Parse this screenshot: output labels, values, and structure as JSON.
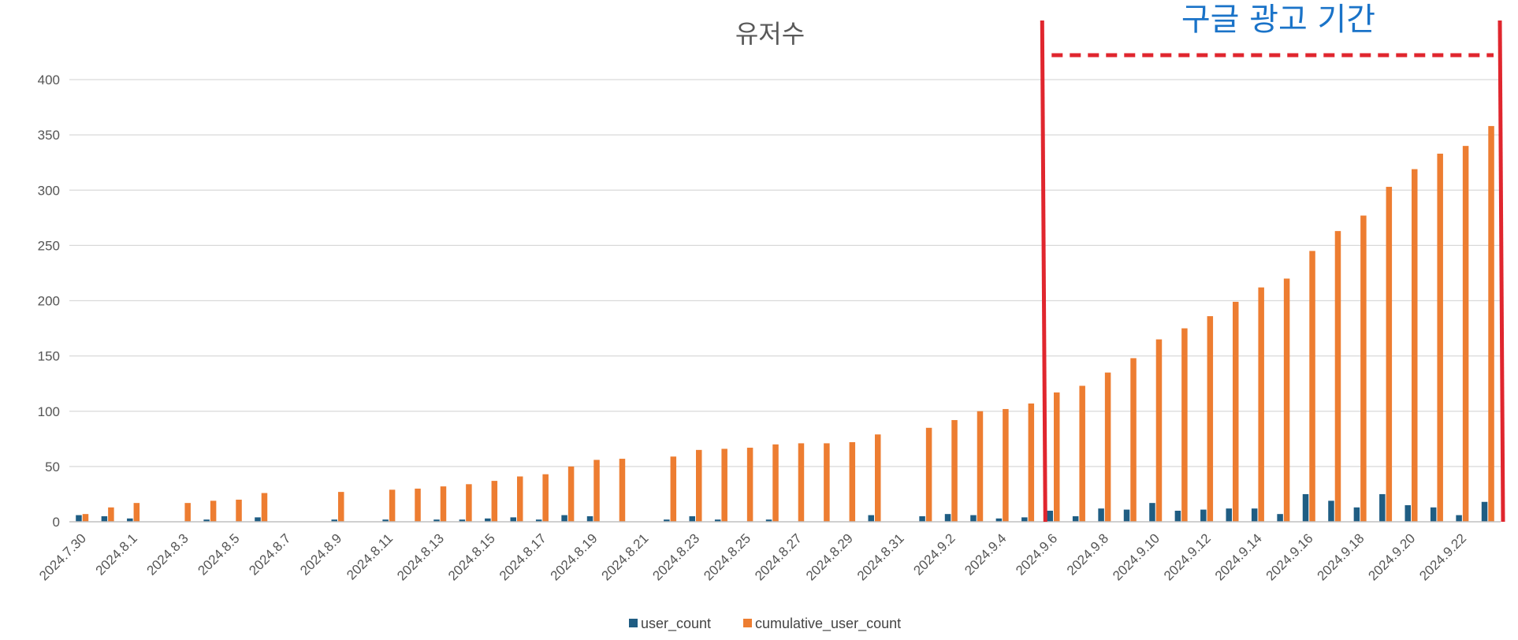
{
  "colors": {
    "user_count": "#1f5d83",
    "cumulative_user_count": "#ed7d31",
    "grid": "#d9d9d9",
    "annotation_line": "#e0262e",
    "annotation_text": "#1a73c8"
  },
  "chart_data": {
    "type": "bar",
    "title": "유저수",
    "xlabel": "",
    "ylabel": "",
    "ylim": [
      0,
      400
    ],
    "yticks": [
      0,
      50,
      100,
      150,
      200,
      250,
      300,
      350,
      400
    ],
    "grid": true,
    "legend_position": "bottom",
    "categories": [
      "2024.7.30",
      "2024.7.31",
      "2024.8.1",
      "2024.8.2",
      "2024.8.3",
      "2024.8.4",
      "2024.8.5",
      "2024.8.6",
      "2024.8.7",
      "2024.8.8",
      "2024.8.9",
      "2024.8.10",
      "2024.8.11",
      "2024.8.12",
      "2024.8.13",
      "2024.8.14",
      "2024.8.15",
      "2024.8.16",
      "2024.8.17",
      "2024.8.18",
      "2024.8.19",
      "2024.8.20",
      "2024.8.21",
      "2024.8.22",
      "2024.8.23",
      "2024.8.24",
      "2024.8.25",
      "2024.8.26",
      "2024.8.27",
      "2024.8.28",
      "2024.8.29",
      "2024.8.30",
      "2024.8.31",
      "2024.9.1",
      "2024.9.2",
      "2024.9.3",
      "2024.9.4",
      "2024.9.5",
      "2024.9.6",
      "2024.9.7",
      "2024.9.8",
      "2024.9.9",
      "2024.9.10",
      "2024.9.11",
      "2024.9.12",
      "2024.9.13",
      "2024.9.14",
      "2024.9.15",
      "2024.9.16",
      "2024.9.17",
      "2024.9.18",
      "2024.9.19",
      "2024.9.20",
      "2024.9.21",
      "2024.9.22",
      "2024.9.23"
    ],
    "tick_labels": [
      "2024.7.30",
      "2024.8.1",
      "2024.8.3",
      "2024.8.5",
      "2024.8.7",
      "2024.8.9",
      "2024.8.11",
      "2024.8.13",
      "2024.8.15",
      "2024.8.17",
      "2024.8.19",
      "2024.8.21",
      "2024.8.23",
      "2024.8.25",
      "2024.8.27",
      "2024.8.29",
      "2024.8.31",
      "2024.9.2",
      "2024.9.4",
      "2024.9.6",
      "2024.9.8",
      "2024.9.10",
      "2024.9.12",
      "2024.9.14",
      "2024.9.16",
      "2024.9.18",
      "2024.9.20",
      "2024.9.22"
    ],
    "series": [
      {
        "name": "user_count",
        "values": [
          6,
          5,
          3,
          0,
          0,
          2,
          0,
          4,
          0,
          0,
          2,
          0,
          2,
          0,
          2,
          2,
          3,
          4,
          2,
          6,
          5,
          0,
          0,
          2,
          5,
          2,
          0,
          2,
          0,
          0,
          0,
          6,
          0,
          5,
          7,
          6,
          3,
          4,
          10,
          5,
          12,
          11,
          17,
          10,
          11,
          12,
          12,
          7,
          25,
          19,
          13,
          25,
          15,
          13,
          6,
          18
        ]
      },
      {
        "name": "cumulative_user_count",
        "values": [
          7,
          13,
          17,
          0,
          17,
          19,
          20,
          26,
          0,
          0,
          27,
          0,
          29,
          30,
          32,
          34,
          37,
          41,
          43,
          50,
          56,
          57,
          0,
          59,
          65,
          66,
          67,
          70,
          71,
          71,
          72,
          79,
          0,
          85,
          92,
          100,
          102,
          107,
          117,
          123,
          135,
          148,
          165,
          175,
          186,
          199,
          212,
          220,
          245,
          263,
          277,
          303,
          319,
          333,
          340,
          358
        ]
      }
    ],
    "annotation": {
      "text": "구글 광고 기간",
      "start_category": "2024.9.6",
      "end_category": "2024.9.23"
    }
  }
}
